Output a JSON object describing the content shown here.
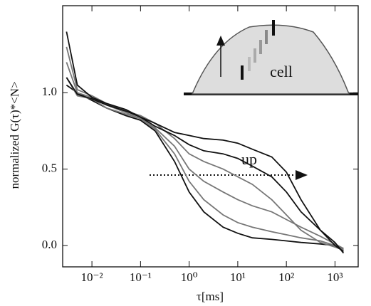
{
  "chart_data": {
    "type": "line",
    "log_x": true,
    "x_label": "τ[ms]",
    "y_label": "normalized G(τ)*<N>",
    "annotations": {
      "arrow": "up",
      "inset": "cell"
    },
    "x": [
      0.003,
      0.005,
      0.01,
      0.02,
      0.05,
      0.1,
      0.2,
      0.5,
      1,
      2,
      5,
      10,
      20,
      50,
      100,
      200,
      500,
      1000,
      1500
    ],
    "series": [
      {
        "color": "#111111",
        "values": [
          1.05,
          1.0,
          0.95,
          0.9,
          0.85,
          0.82,
          0.75,
          0.55,
          0.35,
          0.22,
          0.12,
          0.08,
          0.05,
          0.04,
          0.03,
          0.02,
          0.01,
          0.0,
          -0.02
        ]
      },
      {
        "color": "#777777",
        "values": [
          1.1,
          0.98,
          0.96,
          0.9,
          0.86,
          0.83,
          0.76,
          0.6,
          0.42,
          0.3,
          0.2,
          0.15,
          0.12,
          0.09,
          0.07,
          0.05,
          0.03,
          0.0,
          -0.03
        ]
      },
      {
        "color": "#777777",
        "values": [
          1.2,
          1.0,
          0.97,
          0.92,
          0.87,
          0.83,
          0.77,
          0.65,
          0.5,
          0.42,
          0.35,
          0.3,
          0.26,
          0.22,
          0.17,
          0.12,
          0.06,
          0.01,
          -0.02
        ]
      },
      {
        "color": "#777777",
        "values": [
          1.3,
          1.02,
          0.98,
          0.93,
          0.88,
          0.85,
          0.8,
          0.7,
          0.6,
          0.55,
          0.5,
          0.45,
          0.4,
          0.3,
          0.2,
          0.1,
          0.02,
          -0.01,
          -0.03
        ]
      },
      {
        "color": "#111111",
        "values": [
          1.1,
          0.99,
          0.96,
          0.92,
          0.88,
          0.84,
          0.78,
          0.72,
          0.66,
          0.62,
          0.6,
          0.57,
          0.52,
          0.45,
          0.35,
          0.22,
          0.1,
          0.02,
          -0.05
        ]
      },
      {
        "color": "#111111",
        "values": [
          1.4,
          1.05,
          0.97,
          0.93,
          0.89,
          0.84,
          0.8,
          0.74,
          0.72,
          0.7,
          0.69,
          0.67,
          0.63,
          0.58,
          0.48,
          0.3,
          0.1,
          0.0,
          -0.04
        ]
      }
    ],
    "xlim": [
      0.0025,
      3000
    ],
    "xticks": [
      {
        "value": 0.01,
        "label": "10⁻²"
      },
      {
        "value": 0.1,
        "label": "10⁻¹"
      },
      {
        "value": 1,
        "label": "10⁰"
      },
      {
        "value": 10,
        "label": "10¹"
      },
      {
        "value": 100,
        "label": "10²"
      },
      {
        "value": 1000,
        "label": "10³"
      }
    ],
    "ylim": [
      -0.14,
      1.57
    ],
    "yticks": [
      {
        "value": 0,
        "label": "0.0"
      },
      {
        "value": 0.5,
        "label": "0.5"
      },
      {
        "value": 1,
        "label": "1.0"
      }
    ]
  }
}
